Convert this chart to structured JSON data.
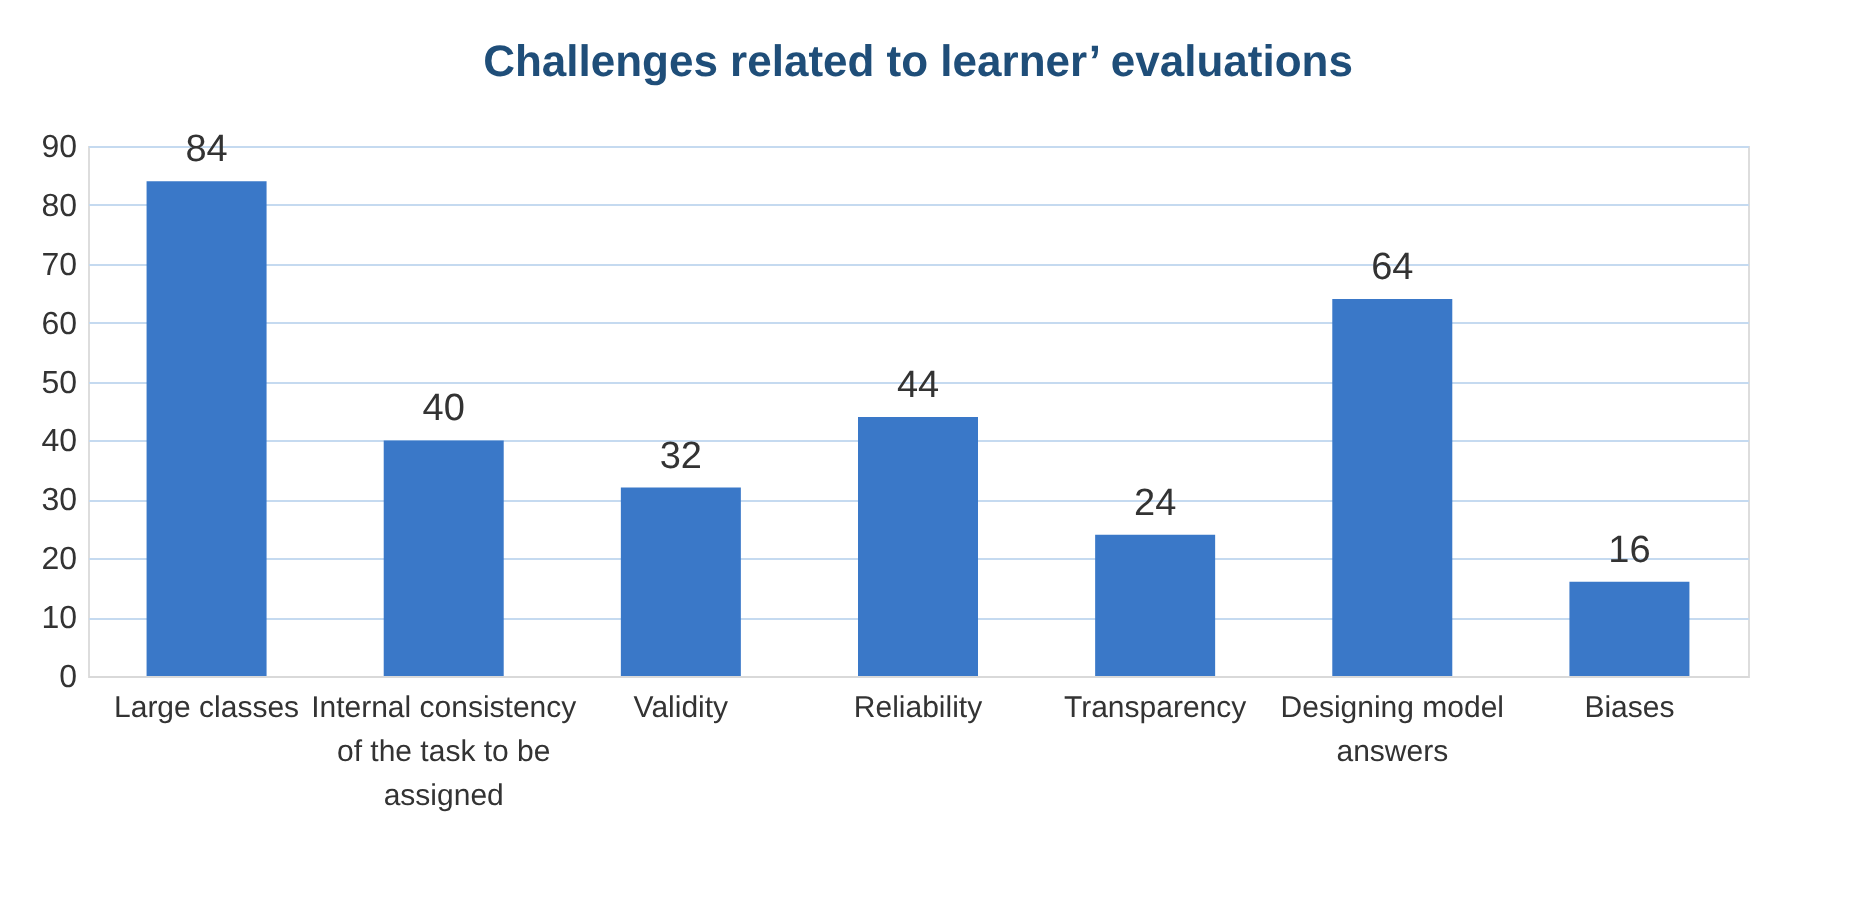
{
  "chart_data": {
    "type": "bar",
    "title": "Challenges related to learner’ evaluations",
    "categories": [
      "Large classes",
      "Internal consistency of the task to be assigned",
      "Validity",
      "Reliability",
      "Transparency",
      "Designing model answers",
      "Biases"
    ],
    "values": [
      84,
      40,
      32,
      44,
      24,
      64,
      16
    ],
    "color": "#3a78c8",
    "ylim": [
      0,
      90
    ],
    "yticks": [
      0,
      10,
      20,
      30,
      40,
      50,
      60,
      70,
      80,
      90
    ],
    "grid": "y",
    "data_labels": true,
    "legend": false
  }
}
